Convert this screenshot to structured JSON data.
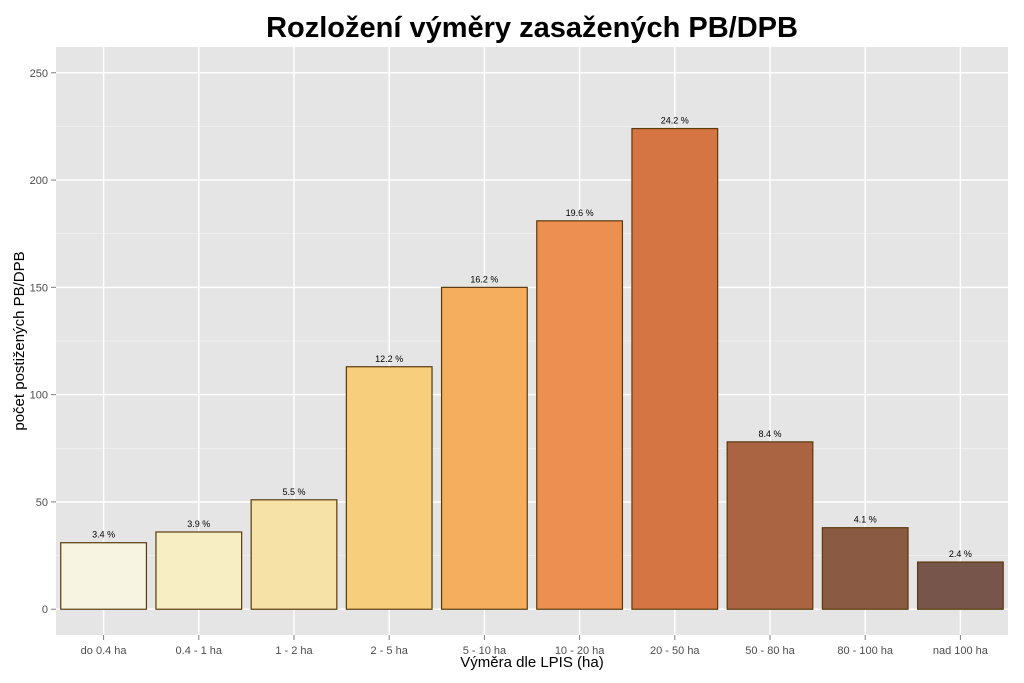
{
  "chart_data": {
    "type": "bar",
    "title": "Rozložení výměry zasažených PB/DPB",
    "xlabel": "Výměra dle LPIS (ha)",
    "ylabel": "počet postižených PB/DPB",
    "categories": [
      "do 0.4 ha",
      "0.4 - 1 ha",
      "1 - 2 ha",
      "2 - 5 ha",
      "5 - 10 ha",
      "10 - 20 ha",
      "20 - 50 ha",
      "50 - 80 ha",
      "80 - 100 ha",
      "nad 100 ha"
    ],
    "values": [
      31,
      36,
      51,
      113,
      150,
      181,
      224,
      78,
      38,
      22
    ],
    "data_labels": [
      "3.4 %",
      "3.9 %",
      "5.5 %",
      "12.2 %",
      "16.2 %",
      "19.6 %",
      "24.2 %",
      "8.4 %",
      "4.1 %",
      "2.4 %"
    ],
    "colors": [
      "#F7F5E2",
      "#F7EEC4",
      "#F6E2A6",
      "#F6CE7C",
      "#F5AE5E",
      "#EC8F50",
      "#D67544",
      "#AA6442",
      "#8A5B42",
      "#77554A"
    ],
    "bar_stroke": "#5A3A0A",
    "panel_color": "#E5E5E5",
    "grid_color": "#FFFFFF",
    "y_ticks": [
      0,
      50,
      100,
      150,
      200,
      250
    ],
    "ylim": [
      -12,
      262
    ],
    "grid": true,
    "legend": "none"
  }
}
